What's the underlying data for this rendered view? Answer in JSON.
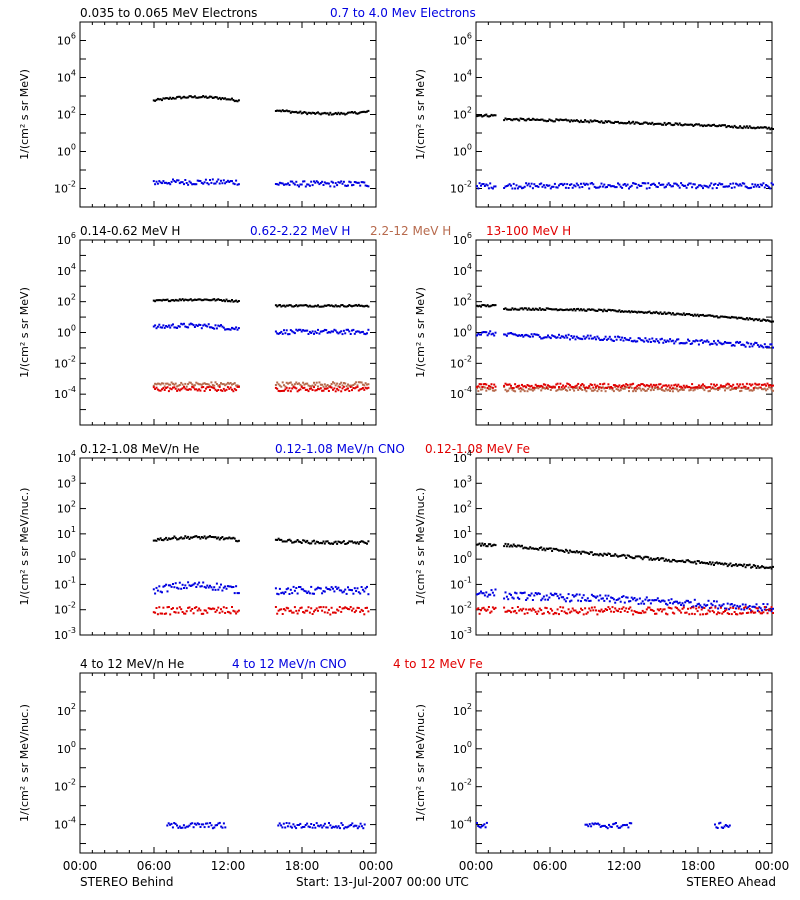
{
  "colors": {
    "black": "#000000",
    "blue": "#0000e0",
    "brown": "#b76a4d",
    "red": "#e00000"
  },
  "footer": {
    "left": "STEREO Behind",
    "center": "Start: 13-Jul-2007 00:00 UTC",
    "right": "STEREO Ahead"
  },
  "x_ticks": [
    "00:00",
    "06:00",
    "12:00",
    "18:00",
    "00:00"
  ],
  "chart_data": [
    {
      "type": "scatter",
      "row_title": [
        {
          "text": "0.035 to 0.065 MeV Electrons",
          "color": "black"
        },
        {
          "text": "0.7 to 4.0 Mev Electrons",
          "color": "blue"
        }
      ],
      "ylabel": "1/(cm² s sr MeV)",
      "y_scale": "log",
      "ylim_exp": [
        -3,
        7
      ],
      "y_ticks": [
        {
          "base": "10",
          "exp": "-2"
        },
        {
          "base": "10",
          "exp": "0"
        },
        {
          "base": "10",
          "exp": "2"
        },
        {
          "base": "10",
          "exp": "4"
        },
        {
          "base": "10",
          "exp": "6"
        }
      ],
      "panels": [
        {
          "name": "STEREO Behind",
          "series": [
            {
              "color": "black",
              "segments": [
                {
                  "x": [
                    5.9,
                    12.8
                  ],
                  "log_y": [
                    2.8,
                    3.0,
                    2.8
                  ]
                },
                {
                  "x": [
                    15.8,
                    23.3
                  ],
                  "log_y": [
                    2.3,
                    2.1,
                    2.2
                  ]
                }
              ]
            },
            {
              "color": "blue",
              "segments": [
                {
                  "x": [
                    5.9,
                    12.8
                  ],
                  "log_y": [
                    -1.6,
                    -1.6,
                    -1.6
                  ]
                },
                {
                  "x": [
                    15.8,
                    23.3
                  ],
                  "log_y": [
                    -1.7,
                    -1.7,
                    -1.7
                  ]
                }
              ]
            }
          ]
        },
        {
          "name": "STEREO Ahead",
          "series": [
            {
              "color": "black",
              "segments": [
                {
                  "x": [
                    0.0,
                    1.5
                  ],
                  "log_y": [
                    2.0,
                    2.0,
                    2.0
                  ]
                },
                {
                  "x": [
                    2.2,
                    24.0
                  ],
                  "log_y": [
                    1.8,
                    1.6,
                    1.3
                  ]
                }
              ]
            },
            {
              "color": "blue",
              "segments": [
                {
                  "x": [
                    0.0,
                    1.5
                  ],
                  "log_y": [
                    -1.8,
                    -1.8,
                    -1.8
                  ]
                },
                {
                  "x": [
                    2.2,
                    24.0
                  ],
                  "log_y": [
                    -1.8,
                    -1.8,
                    -1.8
                  ]
                }
              ]
            }
          ]
        }
      ]
    },
    {
      "type": "scatter",
      "row_title": [
        {
          "text": "0.14-0.62 MeV H",
          "color": "black"
        },
        {
          "text": "0.62-2.22 MeV H",
          "color": "blue"
        },
        {
          "text": "2.2-12 MeV H",
          "color": "brown"
        },
        {
          "text": "13-100 MeV H",
          "color": "red"
        }
      ],
      "ylabel": "1/(cm² s sr MeV)",
      "y_scale": "log",
      "ylim_exp": [
        -6,
        6
      ],
      "y_ticks": [
        {
          "base": "10",
          "exp": "-4"
        },
        {
          "base": "10",
          "exp": "-2"
        },
        {
          "base": "10",
          "exp": "0"
        },
        {
          "base": "10",
          "exp": "2"
        },
        {
          "base": "10",
          "exp": "4"
        },
        {
          "base": "10",
          "exp": "6"
        }
      ],
      "panels": [
        {
          "name": "STEREO Behind",
          "series": [
            {
              "color": "black",
              "segments": [
                {
                  "x": [
                    5.9,
                    12.8
                  ],
                  "log_y": [
                    2.1,
                    2.2,
                    2.1
                  ]
                },
                {
                  "x": [
                    15.8,
                    23.3
                  ],
                  "log_y": [
                    1.8,
                    1.8,
                    1.8
                  ]
                }
              ]
            },
            {
              "color": "blue",
              "segments": [
                {
                  "x": [
                    5.9,
                    12.8
                  ],
                  "log_y": [
                    0.4,
                    0.5,
                    0.3
                  ]
                },
                {
                  "x": [
                    15.8,
                    23.3
                  ],
                  "log_y": [
                    0.1,
                    0.1,
                    0.1
                  ]
                }
              ]
            },
            {
              "color": "brown",
              "segments": [
                {
                  "x": [
                    5.9,
                    12.8
                  ],
                  "log_y": [
                    -3.3,
                    -3.3,
                    -3.3
                  ]
                },
                {
                  "x": [
                    15.8,
                    23.3
                  ],
                  "log_y": [
                    -3.3,
                    -3.3,
                    -3.3
                  ]
                }
              ]
            },
            {
              "color": "red",
              "segments": [
                {
                  "x": [
                    5.9,
                    12.8
                  ],
                  "log_y": [
                    -3.6,
                    -3.6,
                    -3.6
                  ]
                },
                {
                  "x": [
                    15.8,
                    23.3
                  ],
                  "log_y": [
                    -3.6,
                    -3.6,
                    -3.6
                  ]
                }
              ]
            }
          ]
        },
        {
          "name": "STEREO Ahead",
          "series": [
            {
              "color": "black",
              "segments": [
                {
                  "x": [
                    0.0,
                    1.5
                  ],
                  "log_y": [
                    1.8,
                    1.8,
                    1.8
                  ]
                },
                {
                  "x": [
                    2.2,
                    24.0
                  ],
                  "log_y": [
                    1.6,
                    1.4,
                    0.8
                  ]
                }
              ]
            },
            {
              "color": "blue",
              "segments": [
                {
                  "x": [
                    0.0,
                    1.5
                  ],
                  "log_y": [
                    0.0,
                    0.0,
                    0.0
                  ]
                },
                {
                  "x": [
                    2.2,
                    24.0
                  ],
                  "log_y": [
                    -0.1,
                    -0.4,
                    -0.8
                  ]
                }
              ]
            },
            {
              "color": "brown",
              "segments": [
                {
                  "x": [
                    0.0,
                    1.5
                  ],
                  "log_y": [
                    -3.6,
                    -3.6,
                    -3.6
                  ]
                },
                {
                  "x": [
                    2.2,
                    24.0
                  ],
                  "log_y": [
                    -3.6,
                    -3.6,
                    -3.6
                  ]
                }
              ]
            },
            {
              "color": "red",
              "segments": [
                {
                  "x": [
                    0.0,
                    1.5
                  ],
                  "log_y": [
                    -3.4,
                    -3.4,
                    -3.4
                  ]
                },
                {
                  "x": [
                    2.2,
                    24.0
                  ],
                  "log_y": [
                    -3.4,
                    -3.4,
                    -3.4
                  ]
                }
              ]
            }
          ]
        }
      ]
    },
    {
      "type": "scatter",
      "row_title": [
        {
          "text": "0.12-1.08 MeV/n He",
          "color": "black"
        },
        {
          "text": "0.12-1.08 MeV/n CNO",
          "color": "blue"
        },
        {
          "text": "0.12-1.08 MeV Fe",
          "color": "red"
        }
      ],
      "ylabel": "1/(cm² s sr MeV/nuc.)",
      "y_scale": "log",
      "ylim_exp": [
        -3,
        4
      ],
      "y_ticks": [
        {
          "base": "10",
          "exp": "-3"
        },
        {
          "base": "10",
          "exp": "-2"
        },
        {
          "base": "10",
          "exp": "-1"
        },
        {
          "base": "10",
          "exp": "0"
        },
        {
          "base": "10",
          "exp": "1"
        },
        {
          "base": "10",
          "exp": "2"
        },
        {
          "base": "10",
          "exp": "3"
        },
        {
          "base": "10",
          "exp": "4"
        }
      ],
      "panels": [
        {
          "name": "STEREO Behind",
          "series": [
            {
              "color": "black",
              "segments": [
                {
                  "x": [
                    5.9,
                    12.8
                  ],
                  "log_y": [
                    0.8,
                    0.9,
                    0.8
                  ]
                },
                {
                  "x": [
                    15.8,
                    23.3
                  ],
                  "log_y": [
                    0.8,
                    0.7,
                    0.7
                  ]
                }
              ]
            },
            {
              "color": "blue",
              "segments": [
                {
                  "x": [
                    5.9,
                    12.8
                  ],
                  "log_y": [
                    -1.2,
                    -1.0,
                    -1.2
                  ]
                },
                {
                  "x": [
                    15.8,
                    23.3
                  ],
                  "log_y": [
                    -1.2,
                    -1.2,
                    -1.2
                  ]
                }
              ]
            },
            {
              "color": "red",
              "segments": [
                {
                  "x": [
                    5.9,
                    12.8
                  ],
                  "log_y": [
                    -2.0,
                    -2.0,
                    -2.0
                  ]
                },
                {
                  "x": [
                    15.8,
                    23.3
                  ],
                  "log_y": [
                    -2.0,
                    -2.0,
                    -2.0
                  ]
                }
              ]
            }
          ]
        },
        {
          "name": "STEREO Ahead",
          "series": [
            {
              "color": "black",
              "segments": [
                {
                  "x": [
                    0.0,
                    1.5
                  ],
                  "log_y": [
                    0.6,
                    0.6,
                    0.6
                  ]
                },
                {
                  "x": [
                    2.2,
                    24.0
                  ],
                  "log_y": [
                    0.6,
                    0.1,
                    -0.3
                  ]
                }
              ]
            },
            {
              "color": "blue",
              "segments": [
                {
                  "x": [
                    0.0,
                    1.5
                  ],
                  "log_y": [
                    -1.3,
                    -1.3,
                    -1.3
                  ]
                },
                {
                  "x": [
                    2.2,
                    24.0
                  ],
                  "log_y": [
                    -1.4,
                    -1.6,
                    -1.9
                  ]
                }
              ]
            },
            {
              "color": "red",
              "segments": [
                {
                  "x": [
                    0.0,
                    1.5
                  ],
                  "log_y": [
                    -2.0,
                    -2.0,
                    -2.0
                  ]
                },
                {
                  "x": [
                    2.2,
                    24.0
                  ],
                  "log_y": [
                    -2.0,
                    -2.0,
                    -2.0
                  ]
                }
              ]
            }
          ]
        }
      ]
    },
    {
      "type": "scatter",
      "row_title": [
        {
          "text": "4 to 12 MeV/n He",
          "color": "black"
        },
        {
          "text": "4 to 12 MeV/n CNO",
          "color": "blue"
        },
        {
          "text": "4 to 12 MeV Fe",
          "color": "red"
        }
      ],
      "ylabel": "1/(cm² s sr MeV/nuc.)",
      "y_scale": "log",
      "ylim_exp": [
        -5.5,
        4
      ],
      "y_ticks": [
        {
          "base": "10",
          "exp": "-4"
        },
        {
          "base": "10",
          "exp": "-2"
        },
        {
          "base": "10",
          "exp": "0"
        },
        {
          "base": "10",
          "exp": "2"
        }
      ],
      "panels": [
        {
          "name": "STEREO Behind",
          "series": [
            {
              "color": "blue",
              "segments": [
                {
                  "x": [
                    7.0,
                    11.7
                  ],
                  "log_y": [
                    -4.0,
                    -4.0,
                    -4.0
                  ]
                },
                {
                  "x": [
                    16.0,
                    23.0
                  ],
                  "log_y": [
                    -4.0,
                    -4.0,
                    -4.0
                  ]
                }
              ]
            }
          ]
        },
        {
          "name": "STEREO Ahead",
          "series": [
            {
              "color": "blue",
              "segments": [
                {
                  "x": [
                    0.0,
                    0.8
                  ],
                  "log_y": [
                    -4.0,
                    -4.0,
                    -4.0
                  ]
                },
                {
                  "x": [
                    8.8,
                    12.5
                  ],
                  "log_y": [
                    -4.0,
                    -4.0,
                    -4.0
                  ]
                },
                {
                  "x": [
                    19.3,
                    20.5
                  ],
                  "log_y": [
                    -4.0,
                    -4.0,
                    -4.0
                  ]
                }
              ]
            }
          ]
        }
      ]
    }
  ]
}
